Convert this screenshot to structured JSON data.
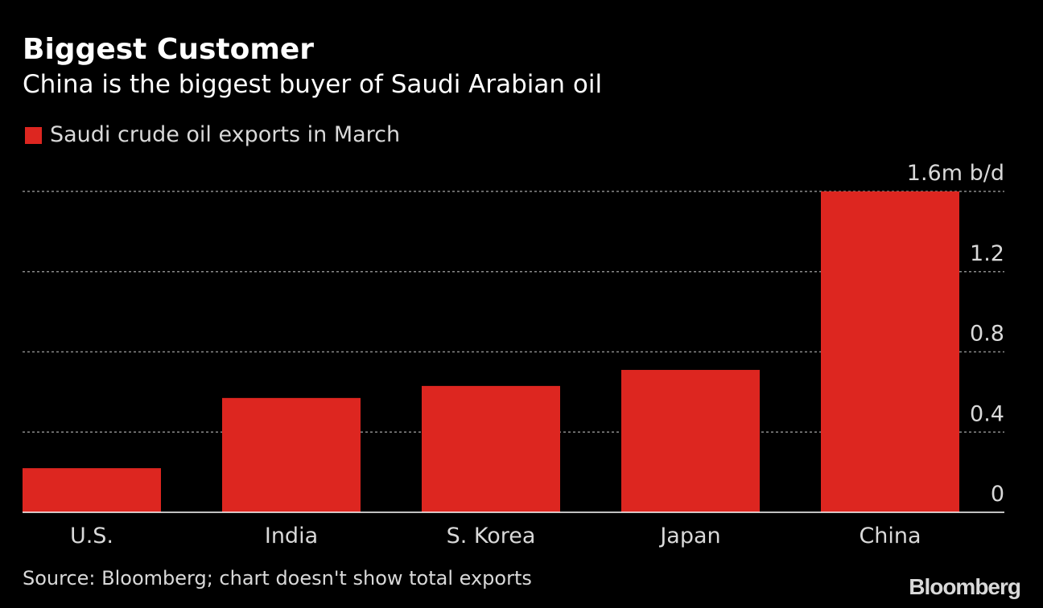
{
  "chart_data": {
    "type": "bar",
    "title": "Biggest Customer",
    "subtitle": "China is the biggest buyer of Saudi Arabian oil",
    "legend": [
      "Saudi crude oil exports in March"
    ],
    "categories": [
      "U.S.",
      "India",
      "S. Korea",
      "Japan",
      "China"
    ],
    "values": [
      0.22,
      0.57,
      0.63,
      0.71,
      1.6
    ],
    "units": "m b/d",
    "ylim": [
      0,
      1.6
    ],
    "yticks": [
      0,
      0.4,
      0.8,
      1.2,
      1.6
    ],
    "ytick_labels": [
      "0",
      "0.4",
      "0.8",
      "1.2",
      "1.6m b/d"
    ],
    "xlabel": "",
    "ylabel": "",
    "grid": true,
    "axis_side": "right",
    "source": "Source: Bloomberg; chart doesn't show total exports",
    "logo": "Bloomberg"
  },
  "colors": {
    "background": "#000000",
    "bar": "#dd2620",
    "grid": "#8a8a8a",
    "axis": "#ffffff",
    "text": "#ffffff",
    "muted_text": "#d9d9d9"
  }
}
